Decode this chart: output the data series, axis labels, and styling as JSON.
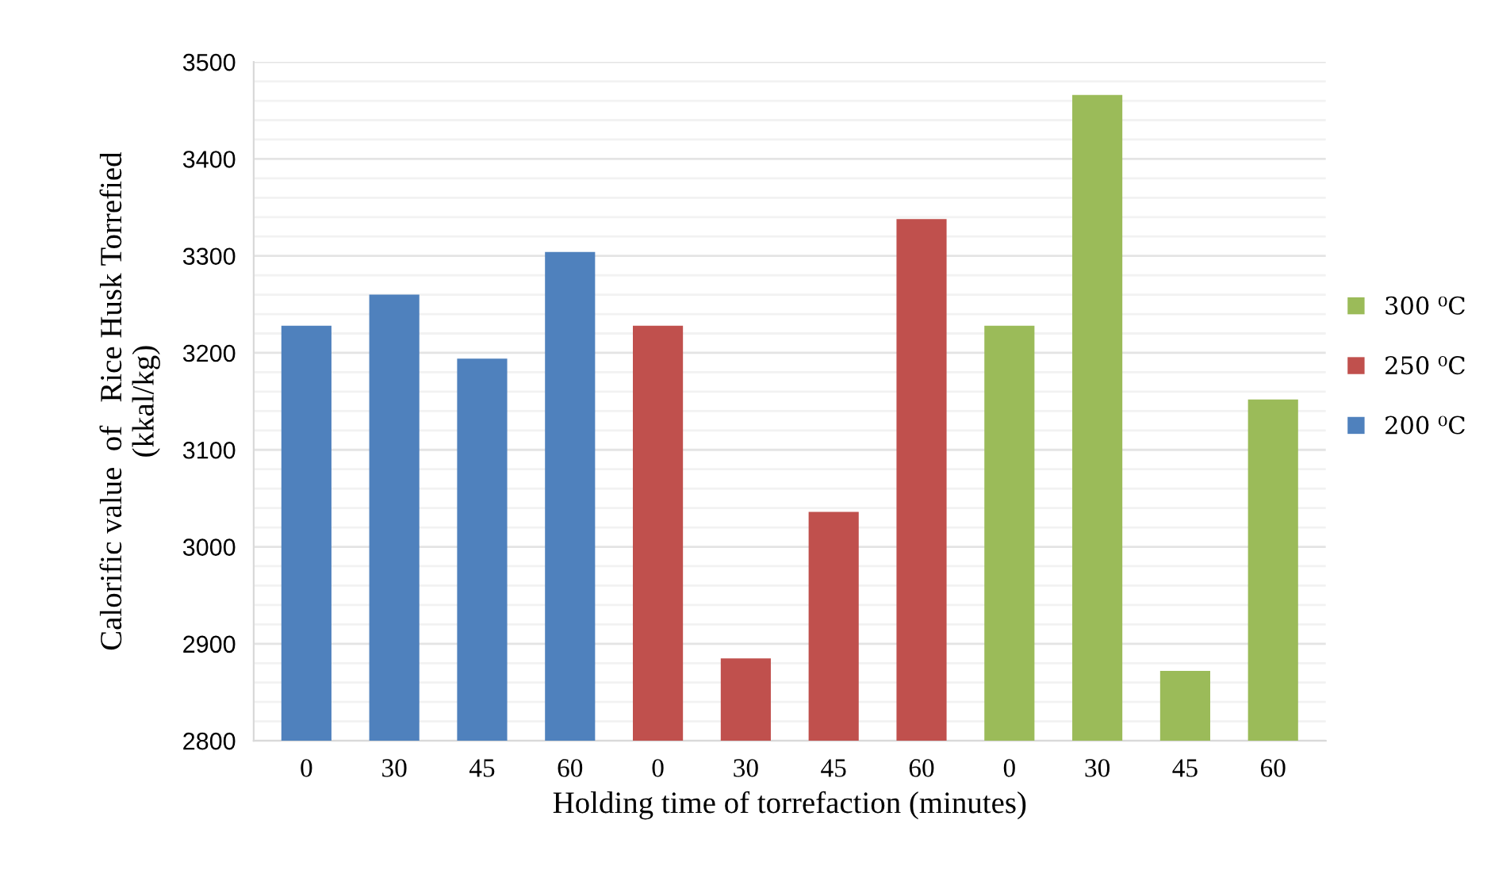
{
  "chart_data": {
    "type": "bar",
    "xlabel": "Holding time of torrefaction (minutes)",
    "ylabel": "Calorific value  of   Rice Husk Torrefied\n(kkal/kg)",
    "categories": [
      "0",
      "30",
      "45",
      "60",
      "0",
      "30",
      "45",
      "60",
      "0",
      "30",
      "45",
      "60"
    ],
    "series": [
      {
        "name": "300 ⁰C",
        "color": "#9bbb59",
        "values": [
          null,
          null,
          null,
          null,
          null,
          null,
          null,
          null,
          3228,
          3466,
          2872,
          3152
        ]
      },
      {
        "name": "250 ⁰C",
        "color": "#c0504d",
        "values": [
          null,
          null,
          null,
          null,
          3228,
          2885,
          3036,
          3338,
          null,
          null,
          null,
          null
        ]
      },
      {
        "name": "200 ⁰C",
        "color": "#4f81bd",
        "values": [
          3228,
          3260,
          3194,
          3304,
          null,
          null,
          null,
          null,
          null,
          null,
          null,
          null
        ]
      }
    ],
    "ylim": [
      2800,
      3500
    ],
    "yticks": [
      2800,
      {
        "value": 2820,
        "label": null
      },
      {
        "value": 2840,
        "label": null
      },
      {
        "value": 2860,
        "label": null
      },
      {
        "value": 2880,
        "label": null
      },
      2900,
      {
        "value": 2920,
        "label": null
      },
      {
        "value": 2940,
        "label": null
      },
      {
        "value": 2960,
        "label": null
      },
      {
        "value": 2980,
        "label": null
      },
      3000,
      {
        "value": 3020,
        "label": null
      },
      {
        "value": 3040,
        "label": null
      },
      {
        "value": 3060,
        "label": null
      },
      {
        "value": 3080,
        "label": null
      },
      3100,
      {
        "value": 3120,
        "label": null
      },
      {
        "value": 3140,
        "label": null
      },
      {
        "value": 3160,
        "label": null
      },
      {
        "value": 3180,
        "label": null
      },
      3200,
      {
        "value": 3220,
        "label": null
      },
      {
        "value": 3240,
        "label": null
      },
      {
        "value": 3260,
        "label": null
      },
      {
        "value": 3280,
        "label": null
      },
      3300,
      {
        "value": 3320,
        "label": null
      },
      {
        "value": 3340,
        "label": null
      },
      {
        "value": 3360,
        "label": null
      },
      {
        "value": 3380,
        "label": null
      },
      3400,
      {
        "value": 3420,
        "label": null
      },
      {
        "value": 3440,
        "label": null
      },
      {
        "value": 3460,
        "label": null
      },
      {
        "value": 3480,
        "label": null
      },
      3500
    ],
    "grid": "y",
    "legend": "right"
  }
}
